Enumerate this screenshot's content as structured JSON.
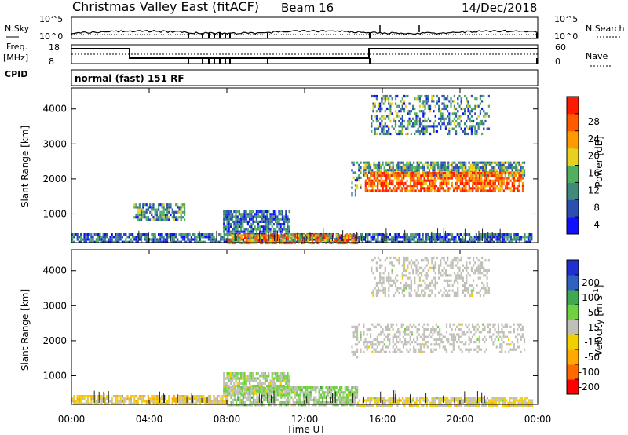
{
  "header": {
    "station": "Christmas Valley East (fitACF)",
    "beam": "Beam 16",
    "date": "14/Dec/2018"
  },
  "noise_panel": {
    "left_label": "N.Sky",
    "right_label": "N.Search",
    "ticks_left": [
      "10^5",
      "10^0"
    ],
    "ticks_right": [
      "10^5",
      "10^0"
    ]
  },
  "freq_panel": {
    "left_label": "Freq.",
    "left_unit": "[MHz]",
    "cpid_label": "CPID",
    "right_label": "Nave",
    "ticks_left": [
      "18",
      "8"
    ],
    "ticks_right": [
      "60",
      "0"
    ]
  },
  "cpid_text": "normal (fast) 151 RF",
  "x_ticks": [
    "00:00",
    "04:00",
    "08:00",
    "12:00",
    "16:00",
    "20:00",
    "00:00"
  ],
  "x_axis_label": "Time UT",
  "colors": {
    "power": [
      "#1010ff",
      "#2a4fb0",
      "#3f8a7a",
      "#50b060",
      "#e8d020",
      "#ff9a00",
      "#ff5a00",
      "#ff1a00"
    ],
    "velocity": [
      "#ff0000",
      "#ff6a00",
      "#ffaa00",
      "#f0d000",
      "#c0c0b8",
      "#70d040",
      "#40a850",
      "#3060c0",
      "#2030d0"
    ],
    "ground_scatter": "#c0c0b8",
    "speckle_dark": "#202020"
  },
  "chart_data": [
    {
      "type": "heatmap",
      "parameter": "Power",
      "ylabel": "Slant Range [km]",
      "xlabel": "Time UT",
      "y_ticks": [
        "1000",
        "2000",
        "3000",
        "4000"
      ],
      "ylim": [
        180,
        4600
      ],
      "xlim_hours": [
        0,
        24
      ],
      "colorbar": {
        "label": "Power [dB]",
        "ticks": [
          "4",
          "8",
          "12",
          "16",
          "20",
          "24",
          "28"
        ],
        "range": [
          0,
          32
        ]
      },
      "regions": [
        {
          "t0": 0.0,
          "t1": 23.7,
          "r0": 180,
          "r1": 450,
          "value": 8
        },
        {
          "t0": 8.0,
          "t1": 14.7,
          "r0": 180,
          "r1": 420,
          "value": 22
        },
        {
          "t0": 3.2,
          "t1": 5.8,
          "r0": 800,
          "r1": 1300,
          "value": 10
        },
        {
          "t0": 7.8,
          "t1": 11.2,
          "r0": 500,
          "r1": 1100,
          "value": 8
        },
        {
          "t0": 14.4,
          "t1": 14.9,
          "r0": 1500,
          "r1": 2500,
          "value": 10
        },
        {
          "t0": 15.0,
          "t1": 23.3,
          "r0": 2100,
          "r1": 2500,
          "value": 12
        },
        {
          "t0": 15.1,
          "t1": 23.2,
          "r0": 1650,
          "r1": 2200,
          "value": 26
        },
        {
          "t0": 15.4,
          "t1": 21.5,
          "r0": 3300,
          "r1": 4400,
          "value": 10
        }
      ]
    },
    {
      "type": "heatmap",
      "parameter": "Velocity",
      "ylabel": "Slant Range [km]",
      "xlabel": "Time UT",
      "y_ticks": [
        "1000",
        "2000",
        "3000",
        "4000"
      ],
      "ylim": [
        180,
        4600
      ],
      "xlim_hours": [
        0,
        24
      ],
      "colorbar": {
        "label": "Velocity [m s^-1]",
        "ticks": [
          "-200",
          "-100",
          "-50",
          "-15",
          "15",
          "50",
          "100",
          "200"
        ],
        "range": [
          -250,
          250
        ]
      },
      "regions": [
        {
          "t0": 0.0,
          "t1": 8.0,
          "r0": 180,
          "r1": 450,
          "value": -50
        },
        {
          "t0": 8.0,
          "t1": 14.7,
          "r0": 180,
          "r1": 700,
          "value": 30
        },
        {
          "t0": 14.7,
          "t1": 23.7,
          "r0": 180,
          "r1": 400,
          "value": -30
        },
        {
          "t0": 7.8,
          "t1": 11.2,
          "r0": 500,
          "r1": 1100,
          "value": 20
        },
        {
          "t0": 14.4,
          "t1": 14.9,
          "r0": 1500,
          "r1": 2500,
          "value": 0
        },
        {
          "t0": 15.0,
          "t1": 23.3,
          "r0": 1650,
          "r1": 2500,
          "value": 0
        },
        {
          "t0": 15.4,
          "t1": 21.5,
          "r0": 3300,
          "r1": 4400,
          "value": 0
        }
      ]
    }
  ]
}
